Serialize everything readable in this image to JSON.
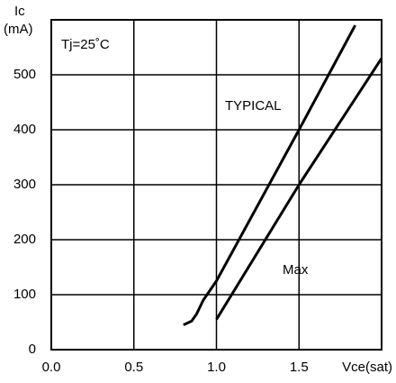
{
  "chart_data": {
    "type": "line",
    "y_label": "Ic",
    "y_unit": "(mA)",
    "x_label": "Vce(sat)",
    "annotation": "Tj=25˚C",
    "series": [
      {
        "name": "TYPICAL",
        "color": "#000000",
        "x": [
          0.8,
          0.85,
          0.88,
          0.92,
          1.0,
          1.5,
          1.84
        ],
        "values": [
          45,
          52,
          65,
          90,
          125,
          400,
          590
        ]
      },
      {
        "name": "Max",
        "color": "#000000",
        "x": [
          1.0,
          1.5,
          2.0
        ],
        "values": [
          55,
          300,
          530
        ]
      }
    ],
    "xlim": [
      0,
      2
    ],
    "ylim": [
      0,
      600
    ],
    "xticks": [
      {
        "value": 0,
        "label": "0.0"
      },
      0.5,
      {
        "value": 1,
        "label": "1.0"
      },
      1.5
    ],
    "yticks": [
      0,
      100,
      200,
      300,
      400,
      500
    ],
    "grid": true
  }
}
